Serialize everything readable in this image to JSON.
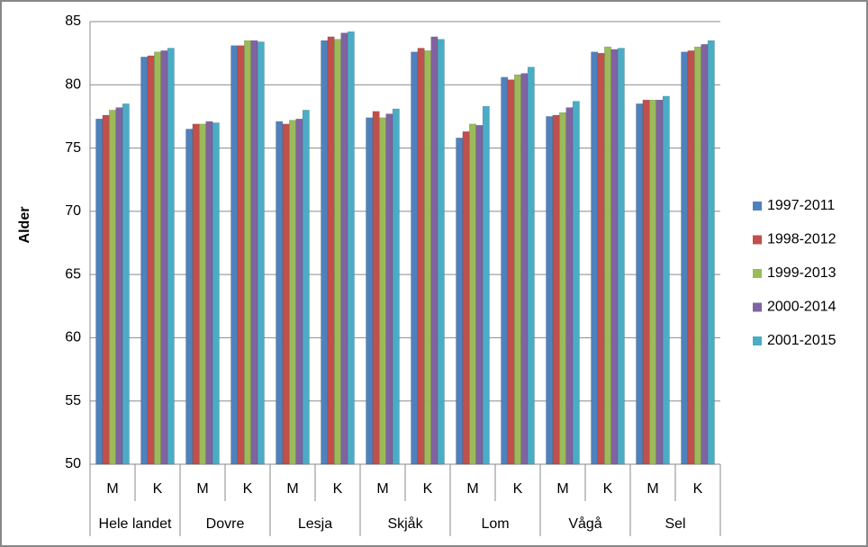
{
  "chart_data": {
    "type": "bar",
    "y_label": "Alder",
    "categories": [
      "M",
      "K",
      "M",
      "K",
      "M",
      "K",
      "M",
      "K",
      "M",
      "K",
      "M",
      "K",
      "M",
      "K"
    ],
    "groups": [
      "Hele landet",
      "Dovre",
      "Lesja",
      "Skjåk",
      "Lom",
      "Vågå",
      "Sel"
    ],
    "series": [
      {
        "name": "1997-2011",
        "color": "#4f81bd",
        "values": [
          77.3,
          82.2,
          76.5,
          83.1,
          77.1,
          83.5,
          77.4,
          82.6,
          75.8,
          80.6,
          77.5,
          82.6,
          78.5,
          82.6
        ]
      },
      {
        "name": "1998-2012",
        "color": "#c0504d",
        "values": [
          77.6,
          82.3,
          76.9,
          83.1,
          76.9,
          83.8,
          77.9,
          82.9,
          76.3,
          80.4,
          77.6,
          82.5,
          78.8,
          82.7
        ]
      },
      {
        "name": "1999-2013",
        "color": "#9bbb59",
        "values": [
          78.0,
          82.6,
          76.9,
          83.5,
          77.2,
          83.6,
          77.4,
          82.7,
          76.9,
          80.8,
          77.8,
          83.0,
          78.8,
          83.0
        ]
      },
      {
        "name": "2000-2014",
        "color": "#8064a2",
        "values": [
          78.2,
          82.7,
          77.1,
          83.5,
          77.3,
          84.1,
          77.7,
          83.8,
          76.8,
          80.9,
          78.2,
          82.8,
          78.8,
          83.2
        ]
      },
      {
        "name": "2001-2015",
        "color": "#4bacc6",
        "values": [
          78.5,
          82.9,
          77.0,
          83.4,
          78.0,
          84.2,
          78.1,
          83.6,
          78.3,
          81.4,
          78.7,
          82.9,
          79.1,
          83.5
        ]
      }
    ],
    "ylim": [
      50,
      85
    ],
    "yticks": [
      50,
      55,
      60,
      65,
      70,
      75,
      80,
      85
    ],
    "grid": true,
    "legend": "right"
  }
}
